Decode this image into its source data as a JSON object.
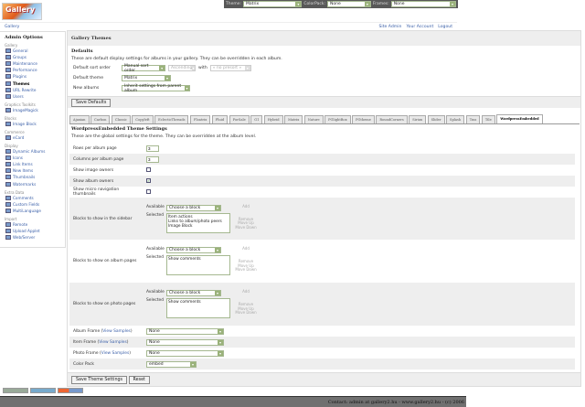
{
  "logo": "Gallery",
  "topbar": {
    "theme_label": "Theme:",
    "theme_value": "Matrix",
    "colorpack_label": "ColorPack:",
    "colorpack_value": "None",
    "frames_label": "Frames:",
    "frames_value": "None"
  },
  "breadcrumb": "Gallery",
  "header_links": [
    "Site Admin",
    "Your Account",
    "Logout"
  ],
  "sidebar": {
    "title": "Admin Options",
    "groups": [
      {
        "label": "Gallery",
        "items": [
          {
            "label": "General"
          },
          {
            "label": "Groups"
          },
          {
            "label": "Maintenance"
          },
          {
            "label": "Performance"
          },
          {
            "label": "Plugins"
          },
          {
            "label": "Themes",
            "active": true
          },
          {
            "label": "URL Rewrite"
          },
          {
            "label": "Users"
          }
        ]
      },
      {
        "label": "Graphics Toolkits",
        "items": [
          {
            "label": "ImageMagick"
          }
        ]
      },
      {
        "label": "Blocks",
        "items": [
          {
            "label": "Image Block"
          }
        ]
      },
      {
        "label": "Commerce",
        "items": [
          {
            "label": "eCard"
          }
        ]
      },
      {
        "label": "Display",
        "items": [
          {
            "label": "Dynamic Albums"
          },
          {
            "label": "Icons"
          },
          {
            "label": "Link Items"
          },
          {
            "label": "New Items"
          },
          {
            "label": "Thumbnails"
          },
          {
            "label": "Watermarks"
          }
        ]
      },
      {
        "label": "Extra Data",
        "items": [
          {
            "label": "Comments"
          },
          {
            "label": "Custom Fields"
          },
          {
            "label": "MultiLanguage"
          }
        ]
      },
      {
        "label": "Import",
        "items": [
          {
            "label": "Remote"
          },
          {
            "label": "Upload Applet"
          },
          {
            "label": "Web/Server"
          }
        ]
      }
    ]
  },
  "main": {
    "title": "Gallery Themes",
    "defaults": {
      "heading": "Defaults",
      "desc": "These are default display settings for albums in your gallery. They can be overridden in each album.",
      "sort_label": "Default sort order",
      "sort_value": "Manual sort order",
      "sort_dir": "Ascending",
      "with_label": "with",
      "presort": "« no presort »",
      "theme_label": "Default theme",
      "theme_value": "Matrix",
      "new_label": "New albums",
      "new_value": "Inherit settings from parent album",
      "save": "Save Defaults"
    },
    "tabs": [
      "Ajaxian",
      "Carbon",
      "Classic",
      "Copyleft",
      "EclecticThreads",
      "Floatrix",
      "Fluid",
      "ForSale",
      "G1",
      "Hybrid",
      "Matrix",
      "Nature",
      "PGlightBox",
      "PGtheme",
      "RoundCorners",
      "Siriux",
      "Slider",
      "Splash",
      "Tms",
      "Tile",
      "WordpressEmbedded"
    ],
    "active_tab": "WordpressEmbedded",
    "settings": {
      "heading": "WordpressEmbedded Theme Settings",
      "desc": "These are the global settings for the theme. They can be overridden at the album level.",
      "rows_label": "Rows per album page",
      "rows_value": "3",
      "cols_label": "Columns per album page",
      "cols_value": "3",
      "owners_label": "Show image owners",
      "owners_checked": false,
      "album_owners_label": "Show album owners",
      "album_owners_checked": true,
      "micro_label": "Show micro navigation thumbnails",
      "micro_checked": false,
      "available": "Available",
      "selected": "Selected",
      "choose": "Choose a block",
      "add": "Add",
      "remove": "Remove",
      "up": "Move Up",
      "down": "Move Down",
      "sidebar_label": "Blocks to show in the sidebar",
      "sidebar_blocks": [
        "Item actions",
        "Links to album/photo peers",
        "Image Block"
      ],
      "album_label": "Blocks to show on album pages",
      "album_blocks": [
        "Show comments"
      ],
      "photo_label": "Blocks to show on photo pages",
      "photo_blocks": [
        "Show comments"
      ],
      "view_samples": "View Samples",
      "album_frame_label": "Album Frame",
      "album_frame": "None",
      "item_frame_label": "Item Frame",
      "item_frame": "None",
      "photo_frame_label": "Photo Frame",
      "photo_frame": "None",
      "colorpack_label": "Color Pack",
      "colorpack": "embed",
      "save": "Save Theme Settings",
      "reset": "Reset"
    }
  },
  "footer": "Contact: admin at gallery2.hu - www.gallery2.hu - (c) 2006",
  "colors": {
    "accent_link": "#3a5fa8",
    "footer_bg": "#707070",
    "topbar_bg": "#585858"
  }
}
